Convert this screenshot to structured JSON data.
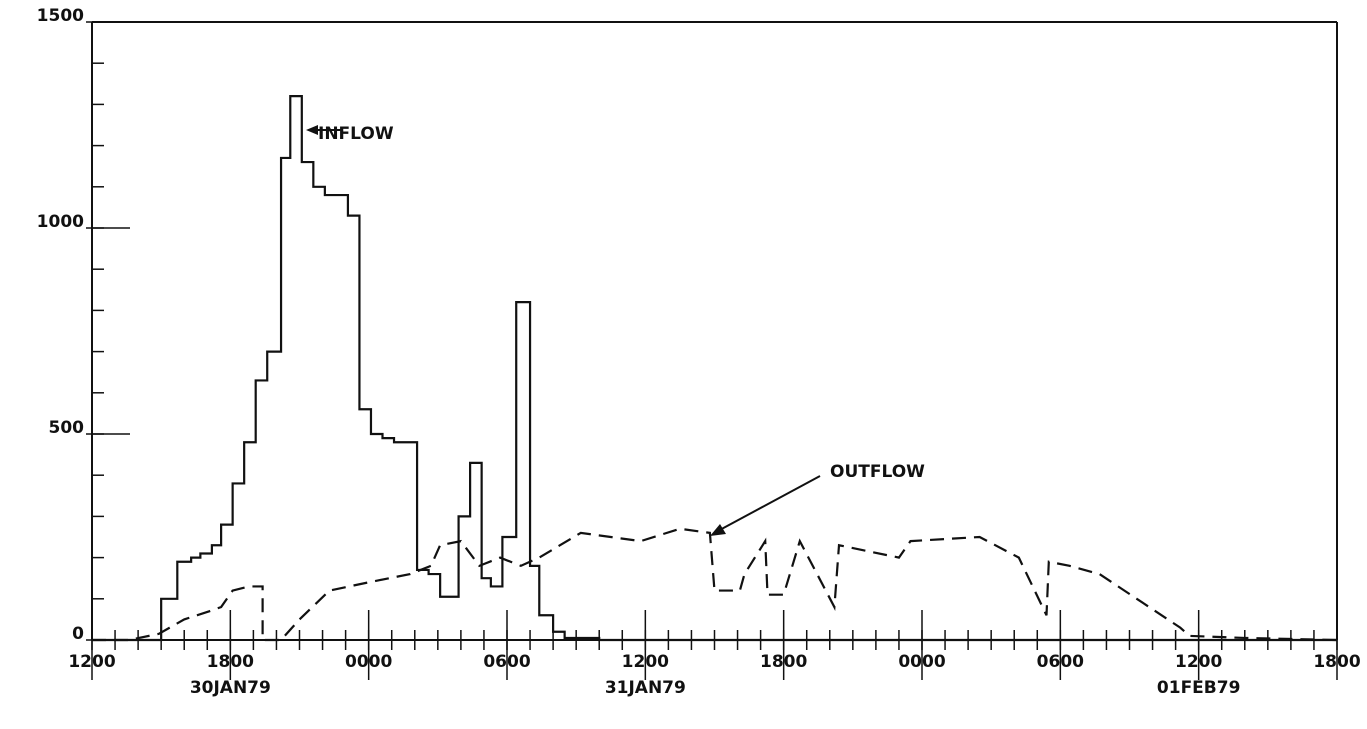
{
  "chart_data": {
    "type": "line",
    "xlim": [
      0,
      54
    ],
    "ylim": [
      0,
      1500
    ],
    "xticks": [
      {
        "value": 0,
        "label": "1200"
      },
      {
        "value": 6,
        "label": "1800"
      },
      {
        "value": 12,
        "label": "0000"
      },
      {
        "value": 18,
        "label": "0600"
      },
      {
        "value": 24,
        "label": "1200"
      },
      {
        "value": 30,
        "label": "1800"
      },
      {
        "value": 36,
        "label": "0000"
      },
      {
        "value": 42,
        "label": "0600"
      },
      {
        "value": 48,
        "label": "1200"
      },
      {
        "value": 54,
        "label": "1800"
      }
    ],
    "xdates": [
      {
        "value": 6,
        "label": "30JAN79"
      },
      {
        "value": 24,
        "label": "31JAN79"
      },
      {
        "value": 48,
        "label": "01FEB79"
      }
    ],
    "yticks": [
      0,
      500,
      1000,
      1500
    ],
    "xminor_step": 1,
    "yminor_step": 100,
    "series": [
      {
        "name": "INFLOW",
        "color": "#111",
        "step": "post",
        "x": [
          0,
          3,
          3.7,
          4.3,
          4.7,
          5.2,
          5.6,
          6.1,
          6.6,
          7.1,
          7.6,
          8.2,
          8.6,
          9.1,
          9.6,
          10.1,
          11.1,
          11.6,
          12.1,
          12.6,
          13.1,
          14.1,
          14.6,
          15.1,
          15.9,
          16.4,
          16.9,
          17.3,
          17.8,
          18.4,
          19,
          19.4,
          20,
          20.5,
          22,
          54
        ],
        "values": [
          0,
          100,
          190,
          200,
          210,
          230,
          280,
          380,
          480,
          630,
          700,
          1170,
          1320,
          1160,
          1100,
          1080,
          1030,
          560,
          500,
          490,
          480,
          170,
          160,
          105,
          300,
          430,
          150,
          130,
          250,
          820,
          180,
          60,
          20,
          5,
          0,
          0
        ]
      },
      {
        "name": "OUTFLOW",
        "color": "#111",
        "dash": true,
        "x": [
          0,
          1.6,
          2.9,
          4,
          5.1,
          5.6,
          6.1,
          6.8,
          7.4,
          7.4,
          8.2,
          9,
          10.3,
          12,
          13.8,
          14.7,
          15.1,
          16,
          16.8,
          17.7,
          18.6,
          19.4,
          20.3,
          21.2,
          23.8,
          25.5,
          26.8,
          27,
          28.1,
          28.3,
          29.2,
          29.3,
          30,
          30.7,
          32.2,
          32.4,
          35,
          35.5,
          38.5,
          40.2,
          41.4,
          41.5,
          42.4,
          43.7,
          47.2,
          47.6,
          50,
          54
        ],
        "values": [
          0,
          0,
          15,
          50,
          70,
          80,
          120,
          130,
          130,
          0,
          0,
          50,
          120,
          140,
          160,
          180,
          230,
          240,
          180,
          200,
          180,
          200,
          230,
          260,
          240,
          270,
          260,
          120,
          120,
          160,
          240,
          110,
          110,
          240,
          80,
          230,
          200,
          240,
          250,
          200,
          60,
          190,
          180,
          160,
          30,
          10,
          5,
          0
        ]
      }
    ],
    "annotations": [
      "INFLOW",
      "OUTFLOW"
    ]
  }
}
